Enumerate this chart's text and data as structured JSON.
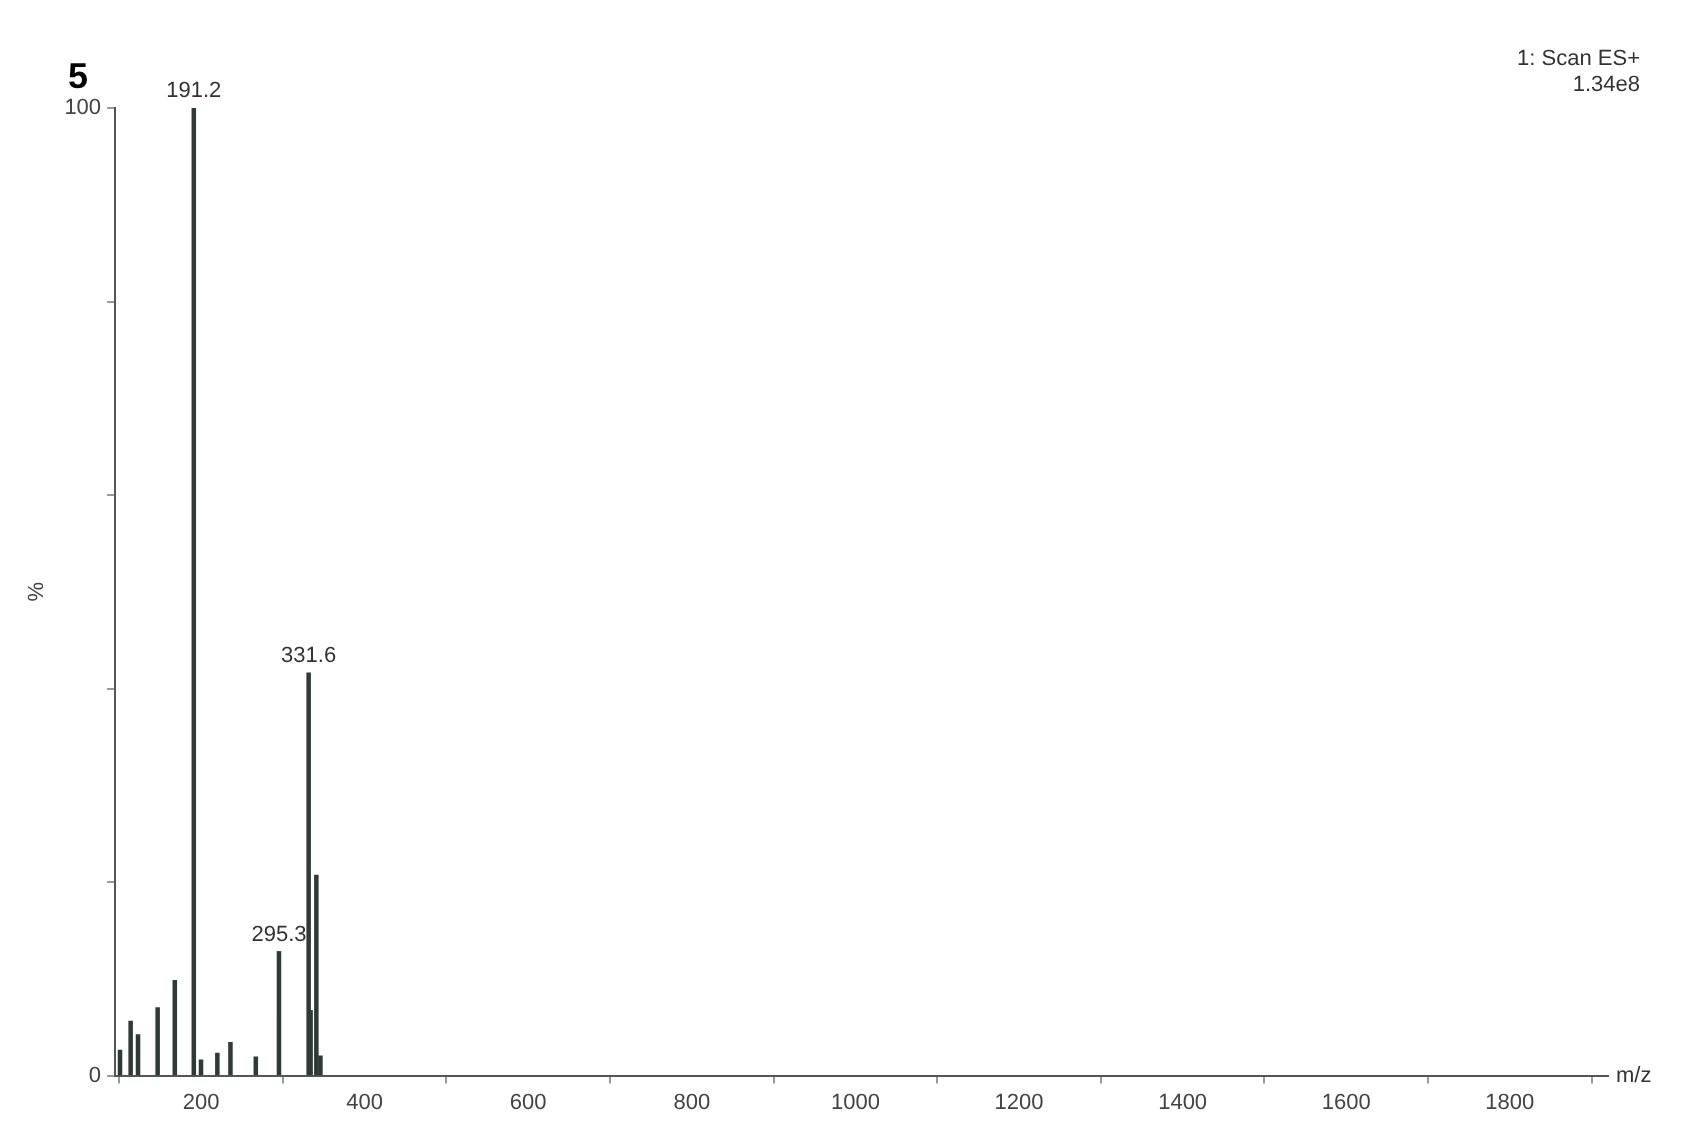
{
  "chart_data": {
    "type": "bar",
    "title": "5",
    "xlabel": "m/z",
    "ylabel": "%",
    "x": [
      101,
      114,
      123,
      147,
      168,
      191.2,
      200,
      220,
      236,
      267,
      295.3,
      331.6,
      334,
      341,
      346
    ],
    "values": [
      2.6,
      5.6,
      4.2,
      7.0,
      9.8,
      100,
      1.6,
      2.3,
      3.4,
      1.9,
      12.8,
      41.6,
      6.7,
      20.7,
      2.0
    ],
    "color": "#2f3a36",
    "xlim": [
      95,
      1920
    ],
    "xticks": [
      200,
      400,
      600,
      800,
      1000,
      1200,
      1400,
      1600,
      1800
    ],
    "ylim": [
      0,
      100
    ],
    "yticks": [
      0,
      {
        "value": 20,
        "label": null
      },
      {
        "value": 40,
        "label": null
      },
      {
        "value": 60,
        "label": null
      },
      {
        "value": 80,
        "label": null
      },
      100
    ],
    "grid": false,
    "legend": false,
    "annotations": [
      {
        "text": "191.2",
        "x": 191.2,
        "y": 100
      },
      {
        "text": "331.6",
        "x": 331.6,
        "y": 41.6
      },
      {
        "text": "295.3",
        "x": 295.3,
        "y": 12.8
      },
      "1: Scan ES+",
      "1.34e8"
    ]
  }
}
